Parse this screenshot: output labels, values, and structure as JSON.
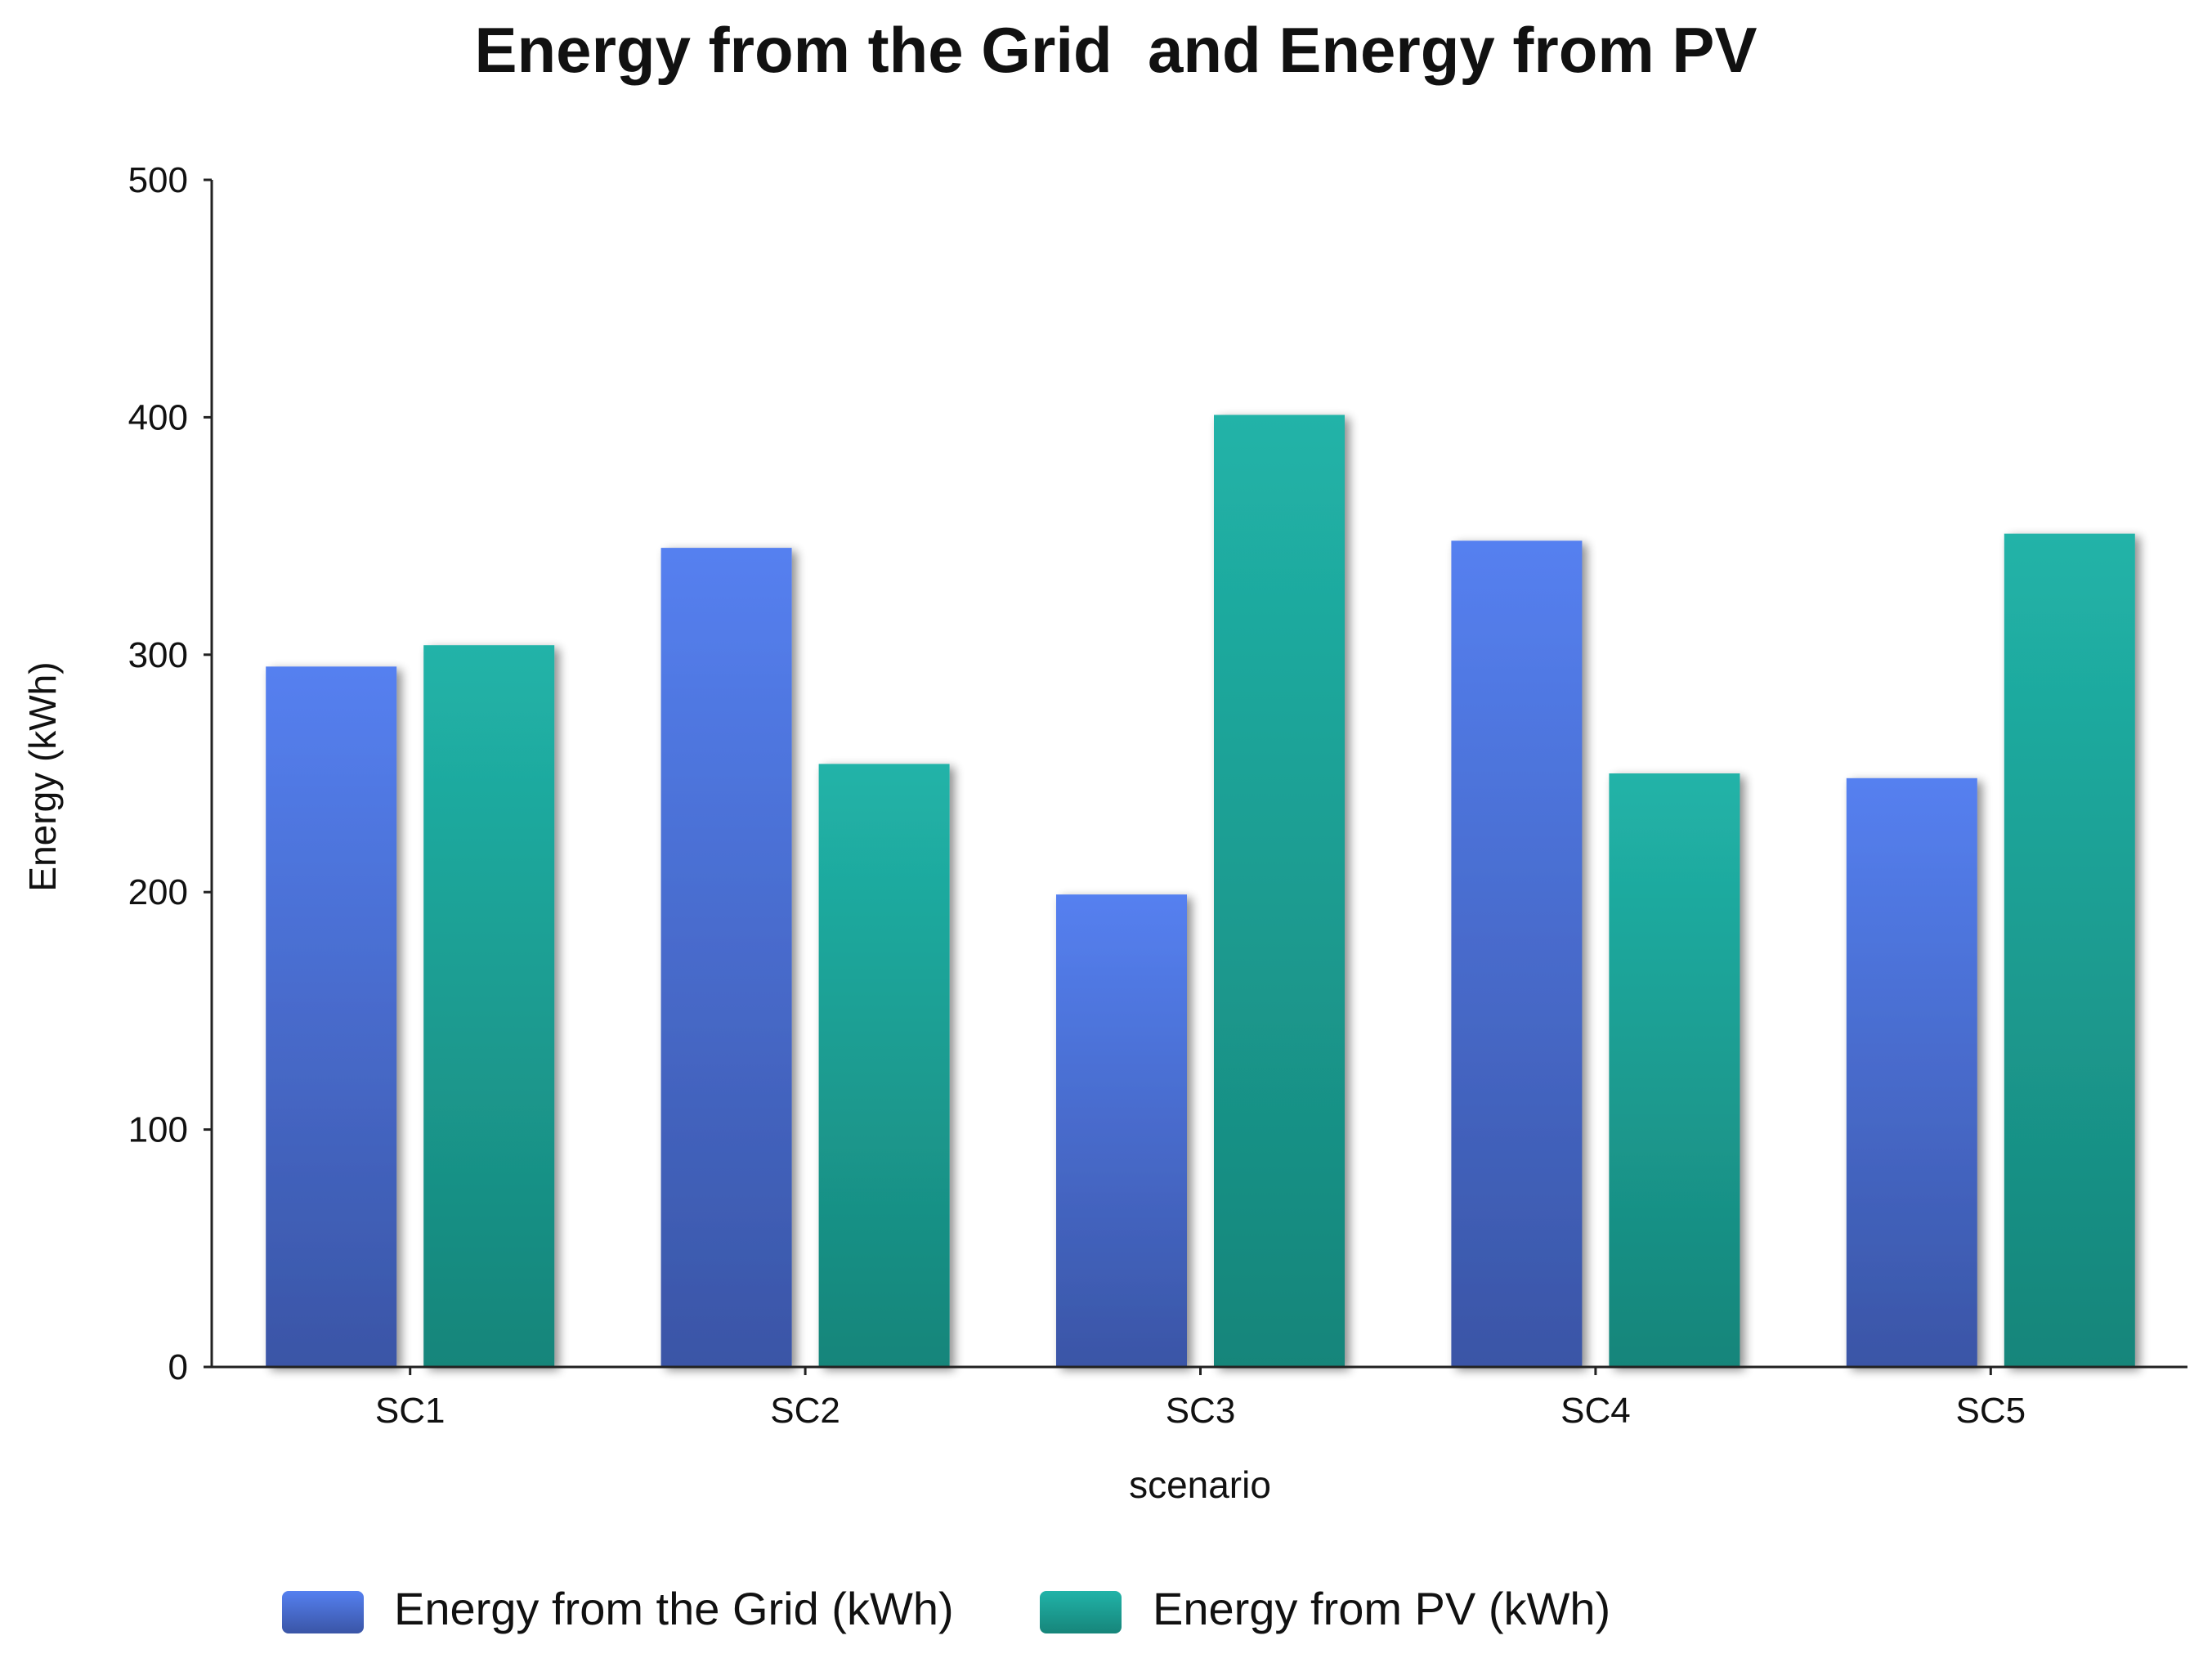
{
  "chart_data": {
    "type": "bar",
    "title": "Energy from the Grid  and Energy from PV",
    "xlabel": "scenario",
    "ylabel": "Energy (kWh)",
    "categories": [
      "SC1",
      "SC2",
      "SC3",
      "SC4",
      "SC5"
    ],
    "yticks": [
      "0",
      "100",
      "200",
      "300",
      "400",
      "500"
    ],
    "ylim": [
      0,
      500
    ],
    "grid": false,
    "legend_position": "bottom",
    "series": [
      {
        "name": "Energy from the Grid (kWh)",
        "values": [
          295,
          345,
          199,
          348,
          248
        ],
        "color_top": "#5580f0",
        "color_bottom": "#3a55a6"
      },
      {
        "name": "Energy from PV (kWh)",
        "values": [
          304,
          254,
          401,
          250,
          351
        ],
        "color_top": "#21b3a8",
        "color_bottom": "#16857a"
      }
    ]
  }
}
